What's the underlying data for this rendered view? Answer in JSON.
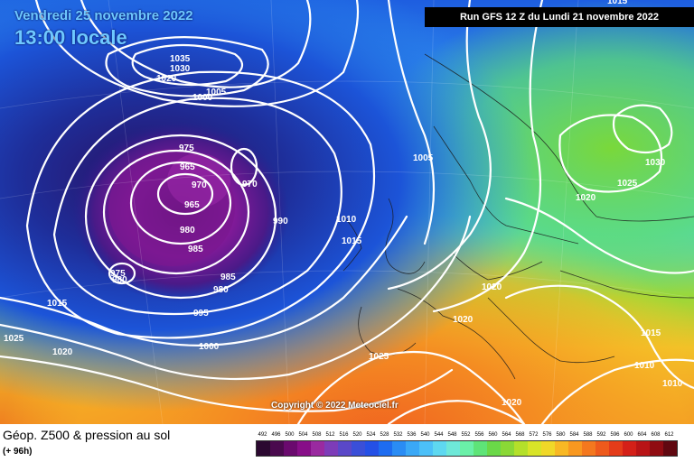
{
  "title": {
    "date": "Vendredi 25 novembre 2022",
    "hour": "13:00 locale"
  },
  "run_info": "Run GFS 12 Z du Lundi 21 novembre 2022",
  "copyright": "Copyright © 2022 Meteociel.fr",
  "footer": {
    "title": "Géop. Z500 & pression au sol",
    "subtitle": "(+ 96h)"
  },
  "legend": {
    "values": [
      "492",
      "496",
      "500",
      "504",
      "508",
      "512",
      "516",
      "520",
      "524",
      "528",
      "532",
      "536",
      "540",
      "544",
      "548",
      "552",
      "556",
      "560",
      "564",
      "568",
      "572",
      "576",
      "580",
      "584",
      "588",
      "592",
      "596",
      "600",
      "604",
      "608",
      "612"
    ],
    "colors": [
      "#2b0830",
      "#4a0a4e",
      "#6a0a6e",
      "#870e88",
      "#9a2aa0",
      "#7d3cb8",
      "#5a48c8",
      "#3a4fd8",
      "#2450e6",
      "#1e6cf0",
      "#2a8cf4",
      "#3aa8f6",
      "#4cc0f8",
      "#5ed8f0",
      "#6ee8d8",
      "#6af0a8",
      "#5ee478",
      "#6ad848",
      "#8ad836",
      "#b4e02a",
      "#d8e428",
      "#f0d828",
      "#f8b824",
      "#f89820",
      "#f4781e",
      "#ee5a1c",
      "#e43c1a",
      "#d42018",
      "#b81416",
      "#900c12",
      "#600810"
    ]
  },
  "isobar_labels": [
    {
      "text": "1035"
    },
    {
      "text": "1030"
    },
    {
      "text": "1020"
    },
    {
      "text": "1005"
    },
    {
      "text": "1000"
    },
    {
      "text": "975"
    },
    {
      "text": "965"
    },
    {
      "text": "970"
    },
    {
      "text": "970"
    },
    {
      "text": "965"
    },
    {
      "text": "990"
    },
    {
      "text": "980"
    },
    {
      "text": "985"
    },
    {
      "text": "975"
    },
    {
      "text": "980"
    },
    {
      "text": "985"
    },
    {
      "text": "980"
    },
    {
      "text": "995"
    },
    {
      "text": "1015"
    },
    {
      "text": "1025"
    },
    {
      "text": "1020"
    },
    {
      "text": "1000"
    },
    {
      "text": "1005"
    },
    {
      "text": "1010"
    },
    {
      "text": "1015"
    },
    {
      "text": "1020"
    },
    {
      "text": "1020"
    },
    {
      "text": "1025"
    },
    {
      "text": "1020"
    },
    {
      "text": "1030"
    },
    {
      "text": "1025"
    },
    {
      "text": "1020"
    },
    {
      "text": "1015"
    },
    {
      "text": "1010"
    },
    {
      "text": "1010"
    },
    {
      "text": "1015"
    }
  ]
}
